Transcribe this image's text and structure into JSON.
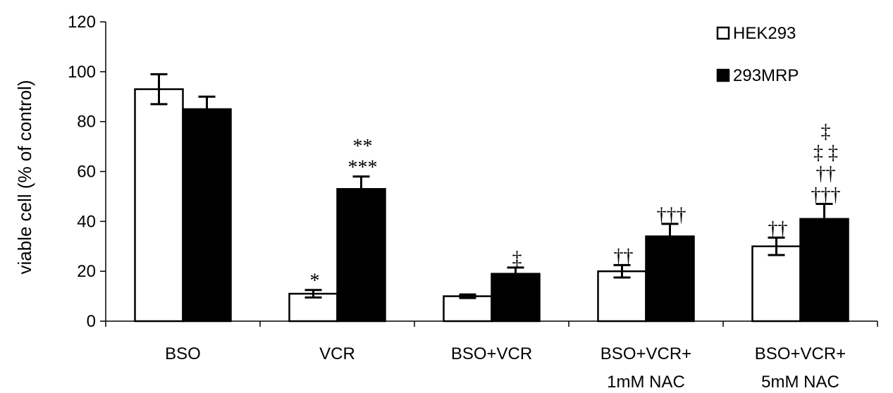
{
  "chart_data": {
    "type": "bar",
    "ylabel": "viable cell (% of control)",
    "ylim": [
      0,
      120
    ],
    "yticks": [
      0,
      20,
      40,
      60,
      80,
      100,
      120
    ],
    "categories": [
      [
        "BSO"
      ],
      [
        "VCR"
      ],
      [
        "BSO+VCR"
      ],
      [
        "BSO+VCR+",
        "1mM NAC"
      ],
      [
        "BSO+VCR+",
        "5mM NAC"
      ]
    ],
    "series": [
      {
        "name": "HEK293",
        "fill": "#ffffff",
        "values": [
          93,
          11,
          10,
          20,
          30
        ],
        "errors": [
          6,
          1.5,
          0.7,
          2.5,
          3.5
        ],
        "annotations": [
          [],
          [
            "*"
          ],
          [],
          [
            "††"
          ],
          [
            "††"
          ]
        ]
      },
      {
        "name": "293MRP",
        "fill": "#000000",
        "values": [
          85,
          53,
          19,
          34,
          41
        ],
        "errors": [
          5,
          5,
          2.5,
          5,
          6
        ],
        "annotations": [
          [],
          [
            "**",
            "***"
          ],
          [
            "‡"
          ],
          [
            "†††"
          ],
          [
            "‡",
            "‡ ‡",
            "††",
            "†††"
          ]
        ]
      }
    ],
    "grid": false,
    "legend": "top-right"
  }
}
